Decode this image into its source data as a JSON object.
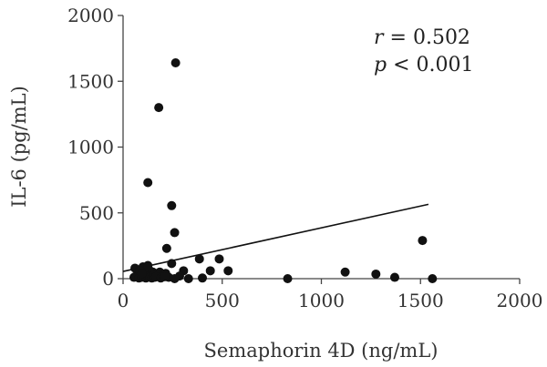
{
  "chart_data": {
    "type": "scatter",
    "title": "",
    "xlabel": "Semaphorin 4D (ng/mL)",
    "ylabel": "IL-6 (pg/mL)",
    "xlim": [
      0,
      2000
    ],
    "ylim": [
      0,
      2000
    ],
    "xticks": [
      0,
      500,
      1000,
      1500,
      2000
    ],
    "yticks": [
      0,
      500,
      1000,
      1500,
      2000
    ],
    "grid": false,
    "annotations": {
      "r_symbol": "r",
      "r_value": " = 0.502",
      "p_symbol": "p",
      "p_value": " < 0.001"
    },
    "trendline": {
      "x": [
        0,
        1540
      ],
      "y": [
        55,
        565
      ]
    },
    "points": [
      [
        265,
        1640
      ],
      [
        180,
        1300
      ],
      [
        125,
        730
      ],
      [
        245,
        555
      ],
      [
        260,
        350
      ],
      [
        220,
        230
      ],
      [
        245,
        115
      ],
      [
        1510,
        290
      ],
      [
        385,
        150
      ],
      [
        485,
        150
      ],
      [
        440,
        60
      ],
      [
        530,
        60
      ],
      [
        305,
        60
      ],
      [
        285,
        20
      ],
      [
        1120,
        50
      ],
      [
        1275,
        35
      ],
      [
        1370,
        10
      ],
      [
        1560,
        0
      ],
      [
        830,
        0
      ],
      [
        60,
        80
      ],
      [
        75,
        50
      ],
      [
        90,
        30
      ],
      [
        100,
        90
      ],
      [
        110,
        60
      ],
      [
        120,
        40
      ],
      [
        130,
        70
      ],
      [
        140,
        20
      ],
      [
        150,
        50
      ],
      [
        160,
        10
      ],
      [
        170,
        30
      ],
      [
        185,
        50
      ],
      [
        200,
        20
      ],
      [
        215,
        40
      ],
      [
        230,
        10
      ],
      [
        55,
        10
      ],
      [
        65,
        20
      ],
      [
        80,
        5
      ],
      [
        95,
        10
      ],
      [
        105,
        15
      ],
      [
        115,
        5
      ],
      [
        125,
        20
      ],
      [
        135,
        10
      ],
      [
        145,
        5
      ],
      [
        155,
        25
      ],
      [
        165,
        15
      ],
      [
        190,
        5
      ],
      [
        210,
        15
      ],
      [
        260,
        0
      ],
      [
        330,
        0
      ],
      [
        400,
        5
      ],
      [
        85,
        60
      ],
      [
        125,
        100
      ],
      [
        95,
        40
      ]
    ]
  }
}
